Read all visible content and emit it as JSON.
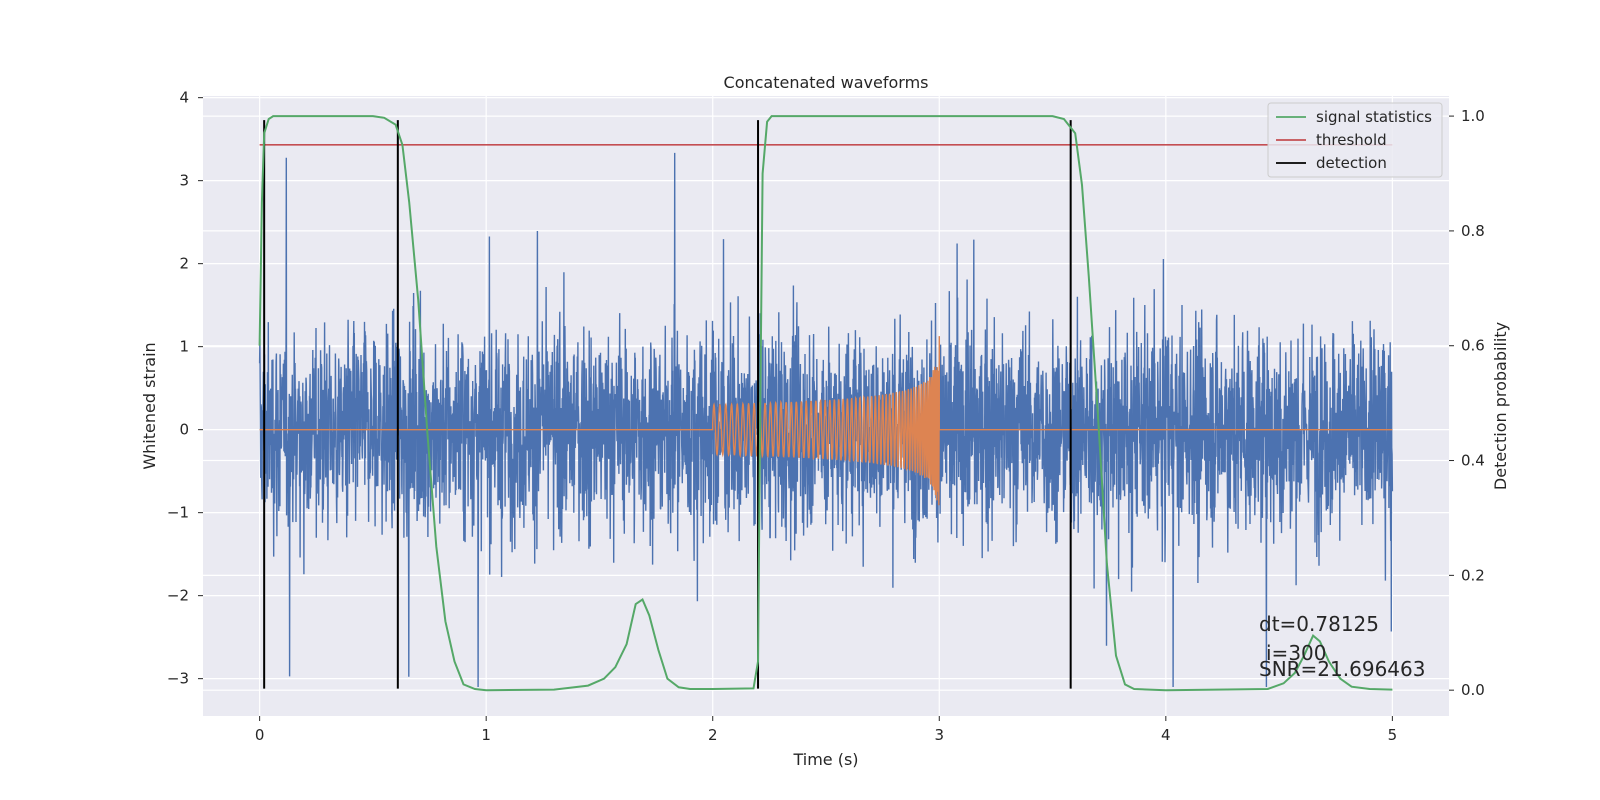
{
  "chart_data": {
    "type": "line",
    "title": "Concatenated waveforms",
    "xlabel": "Time (s)",
    "ylabel": "Whitened strain",
    "y2label": "Detection probability",
    "xlim": [
      -0.25,
      5.25
    ],
    "ylim": [
      -3.45,
      4.02
    ],
    "y2lim": [
      -0.045,
      1.035
    ],
    "x_ticks": [
      0,
      1,
      2,
      3,
      4,
      5
    ],
    "y_ticks": [
      -3,
      -2,
      -1,
      0,
      1,
      2,
      3,
      4
    ],
    "y2_ticks": [
      0.0,
      0.2,
      0.4,
      0.6,
      0.8,
      1.0
    ],
    "grid": true,
    "legend_position": "top-right",
    "series": [
      {
        "kind": "noise",
        "axis": "left",
        "color": "#4c72b0",
        "x_range": [
          0,
          5
        ],
        "amplitude_min": [
          -3.1,
          3.7
        ]
      },
      {
        "kind": "chirp",
        "axis": "left",
        "color": "#dd8452",
        "x_range": [
          0,
          5
        ],
        "chirp_start": 2.0,
        "chirp_end": 3.0,
        "peak": 2.9,
        "initial_amplitude": 0.3
      },
      {
        "name": "signal statistics",
        "axis": "right",
        "color": "#55a868",
        "points": [
          [
            0.0,
            0.6
          ],
          [
            0.01,
            0.85
          ],
          [
            0.02,
            0.97
          ],
          [
            0.04,
            0.995
          ],
          [
            0.06,
            1.0
          ],
          [
            0.5,
            1.0
          ],
          [
            0.55,
            0.997
          ],
          [
            0.6,
            0.985
          ],
          [
            0.63,
            0.95
          ],
          [
            0.66,
            0.85
          ],
          [
            0.7,
            0.68
          ],
          [
            0.74,
            0.45
          ],
          [
            0.78,
            0.25
          ],
          [
            0.82,
            0.12
          ],
          [
            0.86,
            0.05
          ],
          [
            0.9,
            0.01
          ],
          [
            0.95,
            0.002
          ],
          [
            1.0,
            0.0
          ],
          [
            1.3,
            0.001
          ],
          [
            1.45,
            0.008
          ],
          [
            1.52,
            0.02
          ],
          [
            1.57,
            0.04
          ],
          [
            1.62,
            0.08
          ],
          [
            1.66,
            0.15
          ],
          [
            1.69,
            0.158
          ],
          [
            1.72,
            0.13
          ],
          [
            1.76,
            0.07
          ],
          [
            1.8,
            0.02
          ],
          [
            1.85,
            0.005
          ],
          [
            1.9,
            0.002
          ],
          [
            2.0,
            0.002
          ],
          [
            2.18,
            0.003
          ],
          [
            2.2,
            0.05
          ],
          [
            2.21,
            0.5
          ],
          [
            2.22,
            0.9
          ],
          [
            2.24,
            0.99
          ],
          [
            2.26,
            1.0
          ],
          [
            3.5,
            1.0
          ],
          [
            3.55,
            0.995
          ],
          [
            3.6,
            0.97
          ],
          [
            3.63,
            0.88
          ],
          [
            3.66,
            0.72
          ],
          [
            3.7,
            0.48
          ],
          [
            3.74,
            0.22
          ],
          [
            3.78,
            0.06
          ],
          [
            3.82,
            0.01
          ],
          [
            3.86,
            0.002
          ],
          [
            4.0,
            0.0
          ],
          [
            4.45,
            0.002
          ],
          [
            4.52,
            0.012
          ],
          [
            4.57,
            0.03
          ],
          [
            4.61,
            0.06
          ],
          [
            4.65,
            0.095
          ],
          [
            4.68,
            0.085
          ],
          [
            4.72,
            0.05
          ],
          [
            4.77,
            0.02
          ],
          [
            4.82,
            0.006
          ],
          [
            4.9,
            0.002
          ],
          [
            5.0,
            0.001
          ]
        ]
      },
      {
        "name": "threshold",
        "axis": "right",
        "color": "#c44e52",
        "value": 0.95,
        "x_range": [
          0,
          5
        ]
      },
      {
        "name": "detection",
        "axis": "left",
        "color": "#000000",
        "x": [
          0.02,
          0.61,
          2.2,
          3.58
        ],
        "y_range": [
          -3.12,
          3.73
        ]
      }
    ],
    "annotations": [
      "dt=0.78125",
      "i=300",
      "SNR=21.696463"
    ]
  }
}
